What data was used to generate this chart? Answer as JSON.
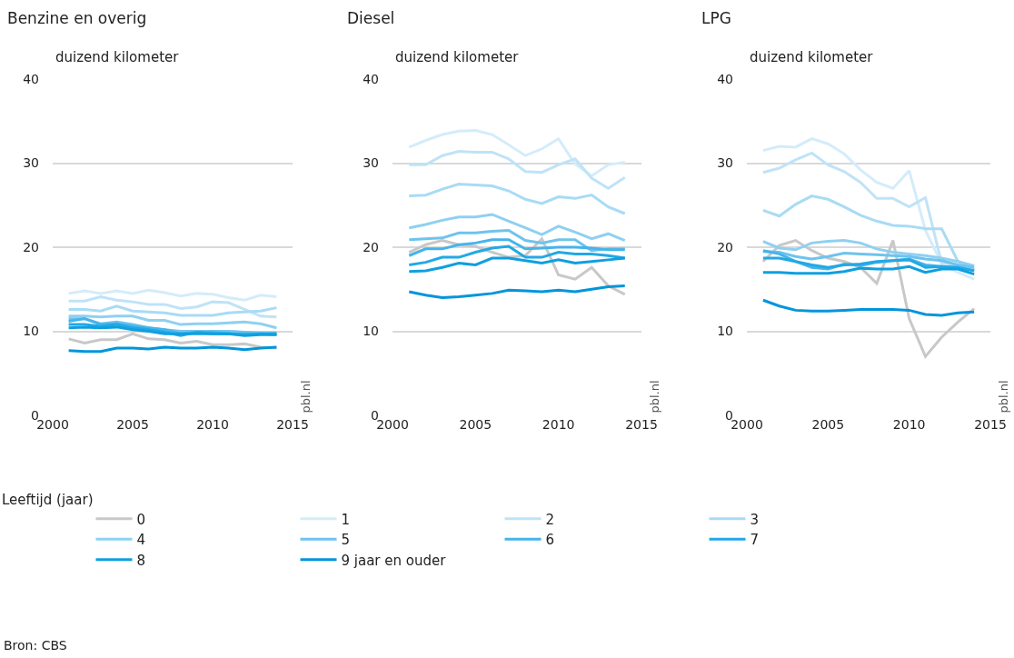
{
  "chart_data": [
    {
      "type": "line",
      "title": "Benzine en overig",
      "ylabel": "duizend kilometer",
      "legend_title": "Leeftijd (jaar)",
      "legend": "bottom",
      "grid": "y",
      "x": [
        2001,
        2002,
        2003,
        2004,
        2005,
        2006,
        2007,
        2008,
        2009,
        2010,
        2011,
        2012,
        2013,
        2014
      ],
      "xlim": [
        2000,
        2015
      ],
      "xticks": [
        2000,
        2005,
        2010,
        2015
      ],
      "ylim": [
        0,
        40
      ],
      "yticks": [
        0,
        10,
        20,
        30,
        40
      ],
      "annotations": [
        "pbl.nl",
        "Bron: CBS"
      ],
      "series": [
        {
          "name": "0",
          "color": "#c8c8c8",
          "values": [
            9.1,
            8.6,
            9.0,
            9.0,
            9.7,
            9.1,
            9.0,
            8.6,
            8.8,
            8.4,
            8.4,
            8.5,
            8.1,
            8.0
          ]
        },
        {
          "name": "1",
          "color": "#d4ecfa",
          "values": [
            14.5,
            14.8,
            14.5,
            14.8,
            14.5,
            14.9,
            14.6,
            14.2,
            14.5,
            14.4,
            14.0,
            13.7,
            14.3,
            14.1
          ]
        },
        {
          "name": "2",
          "color": "#bfe3f7",
          "values": [
            13.6,
            13.6,
            14.1,
            13.7,
            13.5,
            13.2,
            13.2,
            12.7,
            12.9,
            13.5,
            13.4,
            12.6,
            11.8,
            11.7
          ]
        },
        {
          "name": "3",
          "color": "#a8dbf5",
          "values": [
            12.6,
            12.6,
            12.4,
            13.0,
            12.4,
            12.3,
            12.2,
            11.9,
            11.9,
            11.9,
            12.2,
            12.3,
            12.4,
            12.8
          ]
        },
        {
          "name": "4",
          "color": "#8fd0f2",
          "values": [
            11.8,
            11.8,
            11.7,
            11.8,
            11.8,
            11.3,
            11.3,
            10.8,
            10.9,
            10.9,
            11.0,
            11.1,
            10.9,
            10.4
          ]
        },
        {
          "name": "5",
          "color": "#6ec3ee",
          "values": [
            11.5,
            11.5,
            10.9,
            11.1,
            10.8,
            10.4,
            10.2,
            10.0,
            10.0,
            10.0,
            10.0,
            9.9,
            9.8,
            9.8
          ]
        },
        {
          "name": "6",
          "color": "#45b4ea",
          "values": [
            11.2,
            11.5,
            10.8,
            10.9,
            10.6,
            10.4,
            10.2,
            9.7,
            9.9,
            9.9,
            9.7,
            9.7,
            9.7,
            9.6
          ]
        },
        {
          "name": "7",
          "color": "#22a8e6",
          "values": [
            10.8,
            10.8,
            10.6,
            10.8,
            10.4,
            10.2,
            9.9,
            9.5,
            9.9,
            9.7,
            9.7,
            9.6,
            9.7,
            9.7
          ]
        },
        {
          "name": "8",
          "color": "#0f9fe0",
          "values": [
            10.4,
            10.5,
            10.4,
            10.5,
            10.2,
            10.0,
            9.7,
            9.7,
            9.7,
            9.7,
            9.7,
            9.5,
            9.6,
            9.6
          ]
        },
        {
          "name": "9 jaar en ouder",
          "color": "#0095db",
          "values": [
            7.7,
            7.6,
            7.6,
            8.0,
            8.0,
            7.9,
            8.1,
            8.0,
            8.0,
            8.1,
            8.0,
            7.8,
            8.0,
            8.1
          ]
        }
      ]
    },
    {
      "type": "line",
      "title": "Diesel",
      "ylabel": "duizend kilometer",
      "grid": "y",
      "x": [
        2001,
        2002,
        2003,
        2004,
        2005,
        2006,
        2007,
        2008,
        2009,
        2010,
        2011,
        2012,
        2013,
        2014
      ],
      "xlim": [
        2000,
        2015
      ],
      "xticks": [
        2000,
        2005,
        2010,
        2015
      ],
      "ylim": [
        0,
        40
      ],
      "yticks": [
        0,
        10,
        20,
        30,
        40
      ],
      "annotations": [
        "pbl.nl"
      ],
      "series": [
        {
          "color": "#c8c8c8",
          "values": [
            19.4,
            20.3,
            20.8,
            20.3,
            20.1,
            19.4,
            18.8,
            19.0,
            21.0,
            16.7,
            16.2,
            17.6,
            15.4,
            14.4
          ]
        },
        {
          "color": "#d4ecfa",
          "values": [
            31.9,
            32.7,
            33.4,
            33.8,
            33.9,
            33.4,
            32.2,
            30.9,
            31.7,
            32.9,
            29.9,
            28.5,
            29.8,
            30.1
          ]
        },
        {
          "color": "#bfe3f7",
          "values": [
            29.8,
            29.8,
            30.9,
            31.4,
            31.3,
            31.3,
            30.5,
            29.0,
            28.9,
            29.8,
            30.5,
            28.2,
            27.0,
            28.3
          ]
        },
        {
          "color": "#a8dbf5",
          "values": [
            26.1,
            26.2,
            26.9,
            27.5,
            27.4,
            27.3,
            26.7,
            25.7,
            25.2,
            26.0,
            25.8,
            26.2,
            24.8,
            24.0
          ]
        },
        {
          "color": "#8fd0f2",
          "values": [
            22.3,
            22.7,
            23.2,
            23.6,
            23.6,
            23.9,
            23.1,
            22.3,
            21.5,
            22.5,
            21.8,
            21.0,
            21.6,
            20.8
          ]
        },
        {
          "color": "#6ec3ee",
          "values": [
            20.9,
            21.0,
            21.1,
            21.7,
            21.7,
            21.9,
            22.0,
            20.8,
            20.5,
            20.9,
            20.9,
            19.6,
            19.8,
            19.8
          ]
        },
        {
          "color": "#45b4ea",
          "values": [
            19.0,
            19.8,
            19.8,
            20.3,
            20.5,
            20.9,
            20.9,
            19.8,
            19.9,
            20.0,
            20.0,
            19.9,
            19.7,
            19.7
          ]
        },
        {
          "color": "#22a8e6",
          "values": [
            17.9,
            18.2,
            18.8,
            18.8,
            19.4,
            19.9,
            20.1,
            18.8,
            18.8,
            19.4,
            19.2,
            19.2,
            19.0,
            18.7
          ]
        },
        {
          "color": "#0f9fe0",
          "values": [
            17.1,
            17.2,
            17.6,
            18.1,
            17.9,
            18.7,
            18.7,
            18.4,
            18.1,
            18.5,
            18.1,
            18.3,
            18.5,
            18.7
          ]
        },
        {
          "color": "#0095db",
          "values": [
            14.7,
            14.3,
            14.0,
            14.1,
            14.3,
            14.5,
            14.9,
            14.8,
            14.7,
            14.9,
            14.7,
            15.0,
            15.3,
            15.4
          ]
        }
      ]
    },
    {
      "type": "line",
      "title": "LPG",
      "ylabel": "duizend kilometer",
      "grid": "y",
      "x": [
        2001,
        2002,
        2003,
        2004,
        2005,
        2006,
        2007,
        2008,
        2009,
        2010,
        2011,
        2012,
        2013,
        2014
      ],
      "xlim": [
        2000,
        2015
      ],
      "xticks": [
        2000,
        2005,
        2010,
        2015
      ],
      "ylim": [
        0,
        40
      ],
      "yticks": [
        0,
        10,
        20,
        30,
        40
      ],
      "annotations": [
        "pbl.nl"
      ],
      "series": [
        {
          "color": "#c8c8c8",
          "values": [
            18.3,
            20.2,
            20.8,
            19.6,
            18.7,
            18.3,
            17.6,
            15.7,
            20.8,
            11.5,
            7.0,
            9.3,
            11.1,
            12.7
          ]
        },
        {
          "color": "#d4ecfa",
          "values": [
            31.5,
            32.0,
            31.9,
            32.9,
            32.3,
            31.1,
            29.2,
            27.7,
            27.0,
            29.1,
            22.0,
            18.0,
            17.0,
            16.2
          ]
        },
        {
          "color": "#bfe3f7",
          "values": [
            28.9,
            29.4,
            30.4,
            31.2,
            29.8,
            29.0,
            27.7,
            25.8,
            25.8,
            24.8,
            25.9,
            18.1,
            17.9,
            17.2
          ]
        },
        {
          "color": "#a8dbf5",
          "values": [
            24.4,
            23.7,
            25.1,
            26.1,
            25.7,
            24.8,
            23.8,
            23.1,
            22.6,
            22.5,
            22.2,
            22.2,
            18.3,
            17.4
          ]
        },
        {
          "color": "#8fd0f2",
          "values": [
            20.7,
            19.9,
            19.7,
            20.5,
            20.7,
            20.8,
            20.5,
            19.8,
            19.4,
            19.2,
            19.0,
            18.7,
            18.3,
            17.8
          ]
        },
        {
          "color": "#6ec3ee",
          "values": [
            19.5,
            19.4,
            18.9,
            18.6,
            18.9,
            19.3,
            19.2,
            19.1,
            19.0,
            18.9,
            18.6,
            18.4,
            17.9,
            17.6
          ]
        },
        {
          "color": "#45b4ea",
          "values": [
            19.6,
            19.2,
            18.3,
            17.6,
            17.4,
            18.0,
            17.8,
            18.2,
            18.4,
            18.6,
            17.9,
            17.7,
            17.6,
            17.2
          ]
        },
        {
          "color": "#22a8e6",
          "values": [
            18.7,
            18.7,
            18.3,
            17.9,
            17.6,
            17.9,
            18.0,
            18.3,
            18.4,
            18.5,
            17.6,
            17.7,
            17.6,
            17.2
          ]
        },
        {
          "color": "#0f9fe0",
          "values": [
            17.0,
            17.0,
            16.9,
            16.9,
            16.9,
            17.1,
            17.5,
            17.4,
            17.4,
            17.7,
            17.0,
            17.4,
            17.4,
            16.8
          ]
        },
        {
          "color": "#0095db",
          "values": [
            13.7,
            13.0,
            12.5,
            12.4,
            12.4,
            12.5,
            12.6,
            12.6,
            12.6,
            12.5,
            12.0,
            11.9,
            12.2,
            12.3
          ]
        }
      ]
    }
  ]
}
